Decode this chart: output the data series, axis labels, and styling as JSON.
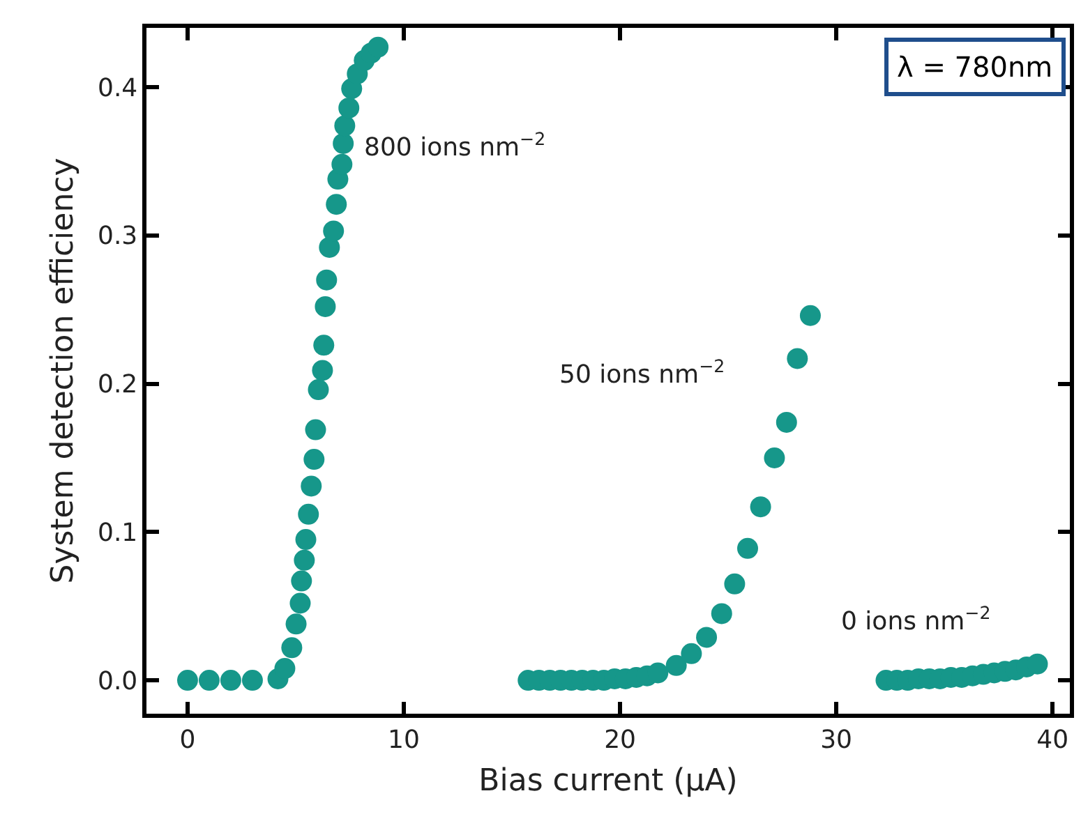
{
  "chart_data": {
    "type": "scatter",
    "xlabel": "Bias current (μA)",
    "ylabel": "System detection efficiency",
    "marker": "circle",
    "grid": false,
    "xlim": [
      -1.9,
      40.8
    ],
    "ylim": [
      -0.0225,
      0.44
    ],
    "xticks": [
      0,
      10,
      20,
      30,
      40
    ],
    "yticks": [
      {
        "value": 0,
        "label": "0.0"
      },
      {
        "value": 0.1,
        "label": "0.1"
      },
      {
        "value": 0.2,
        "label": "0.2"
      },
      {
        "value": 0.3,
        "label": "0.3"
      },
      {
        "value": 0.4,
        "label": "0.4"
      }
    ],
    "series": [
      {
        "color": "#16978a",
        "x": [
          0,
          1,
          2,
          3,
          4.18,
          4.5,
          4.82,
          5.02,
          5.21,
          5.27,
          5.4,
          5.47,
          5.59,
          5.72,
          5.85,
          5.92,
          6.05,
          6.24,
          6.3,
          6.37,
          6.43,
          6.56,
          6.75,
          6.88,
          6.95,
          7.14,
          7.2,
          7.27,
          7.46,
          7.59,
          7.85,
          8.17,
          8.49,
          8.81
        ],
        "values": [
          0,
          0,
          0,
          0,
          0.001,
          0.008,
          0.022,
          0.038,
          0.052,
          0.067,
          0.081,
          0.095,
          0.112,
          0.131,
          0.149,
          0.169,
          0.196,
          0.209,
          0.226,
          0.252,
          0.27,
          0.292,
          0.303,
          0.321,
          0.338,
          0.348,
          0.362,
          0.374,
          0.386,
          0.399,
          0.409,
          0.418,
          0.423,
          0.427
        ]
      },
      {
        "color": "#16978a",
        "x": [
          15.75,
          16.25,
          16.75,
          17.25,
          17.75,
          18.25,
          18.75,
          19.25,
          19.75,
          20.25,
          20.75,
          21.25,
          21.75,
          22.6,
          23.3,
          24,
          24.7,
          25.3,
          25.9,
          26.5,
          27.14,
          27.7,
          28.2,
          28.8
        ],
        "values": [
          0,
          0,
          0,
          0,
          0,
          0,
          0,
          0,
          0.001,
          0.001,
          0.002,
          0.003,
          0.005,
          0.01,
          0.018,
          0.029,
          0.045,
          0.065,
          0.089,
          0.117,
          0.15,
          0.174,
          0.217,
          0.246
        ]
      },
      {
        "color": "#16978a",
        "x": [
          32.3,
          32.8,
          33.3,
          33.8,
          34.3,
          34.8,
          35.3,
          35.8,
          36.3,
          36.8,
          37.3,
          37.8,
          38.3,
          38.8,
          39.3
        ],
        "values": [
          0,
          0,
          0,
          0.001,
          0.001,
          0.001,
          0.002,
          0.002,
          0.003,
          0.004,
          0.005,
          0.006,
          0.007,
          0.009,
          0.011
        ]
      }
    ],
    "annotations": [
      "800 ions nm$^{−2}$",
      "50 ions nm$^{−2}$",
      "0 ions nm$^{−2}$",
      "λ = 780nm"
    ]
  }
}
